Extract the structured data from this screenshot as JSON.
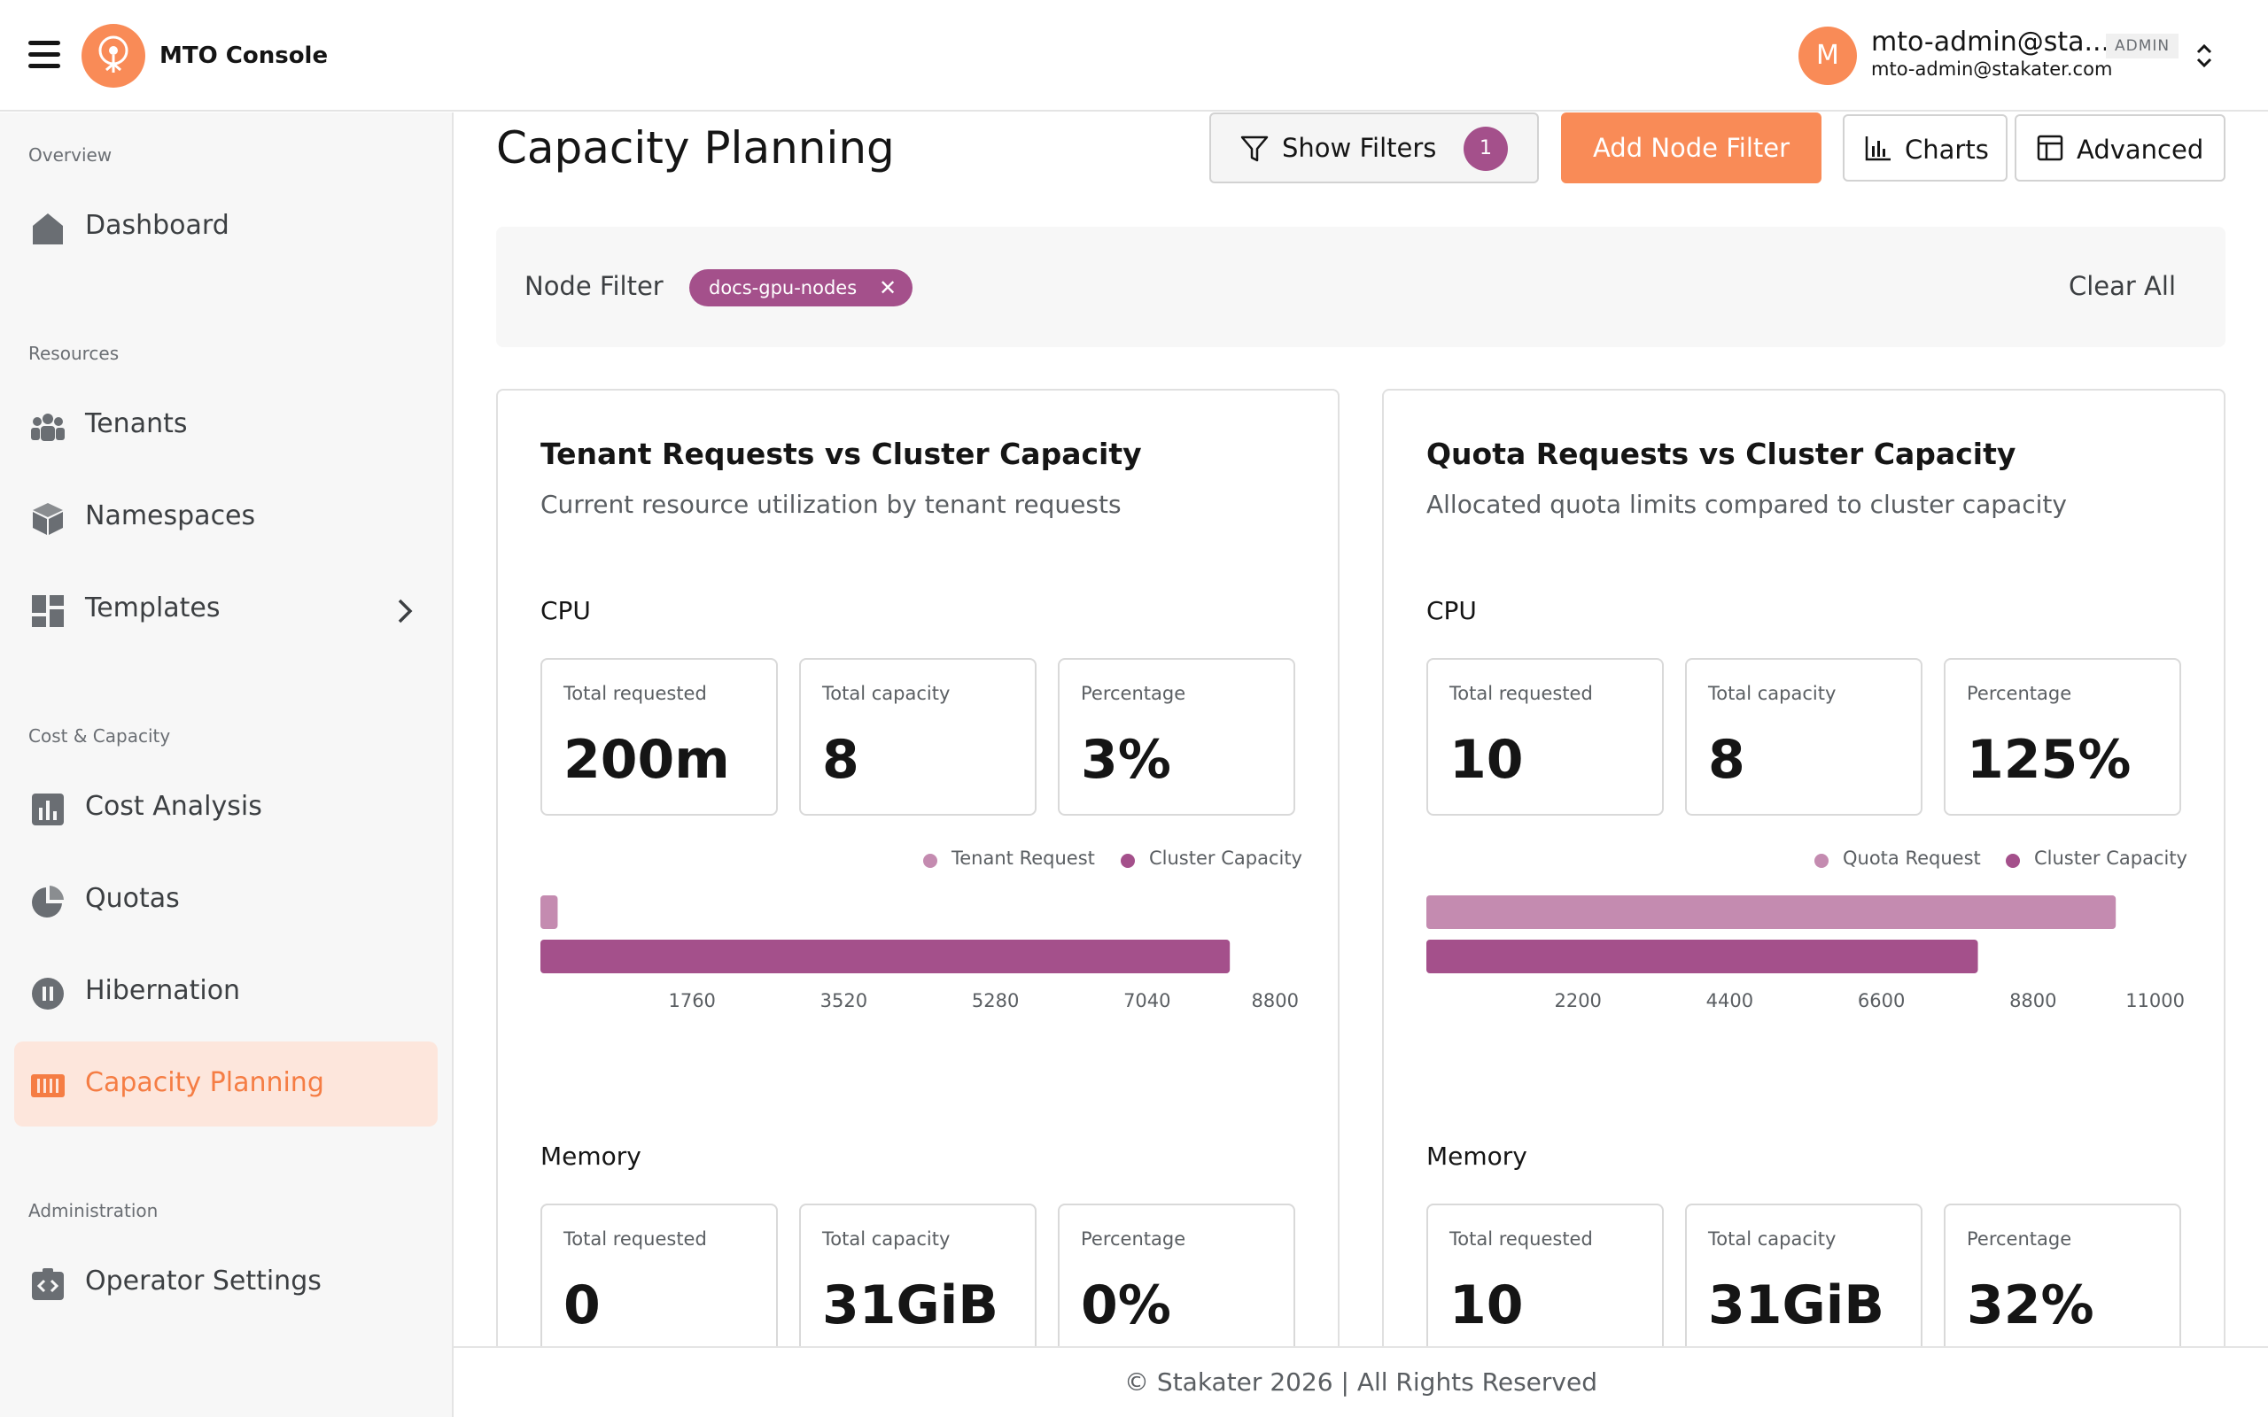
{
  "header": {
    "app_title": "MTO Console",
    "user_initial": "M",
    "user_name": "mto-admin@sta...",
    "user_role": "ADMIN",
    "user_email": "mto-admin@stakater.com"
  },
  "sidebar": {
    "sections": {
      "overview": "Overview",
      "resources": "Resources",
      "cost_capacity": "Cost & Capacity",
      "administration": "Administration"
    },
    "items": {
      "dashboard": "Dashboard",
      "tenants": "Tenants",
      "namespaces": "Namespaces",
      "templates": "Templates",
      "cost_analysis": "Cost Analysis",
      "quotas": "Quotas",
      "hibernation": "Hibernation",
      "capacity_planning": "Capacity Planning",
      "operator_settings": "Operator Settings"
    }
  },
  "page": {
    "title": "Capacity Planning",
    "show_filters": "Show Filters",
    "filter_count": "1",
    "add_node_filter": "Add Node Filter",
    "charts": "Charts",
    "advanced": "Advanced"
  },
  "filter_bar": {
    "label": "Node Filter",
    "chip": "docs-gpu-nodes",
    "clear_all": "Clear All"
  },
  "cards": {
    "tenant": {
      "title": "Tenant Requests vs Cluster Capacity",
      "subtitle": "Current resource utilization by tenant requests",
      "cpu": {
        "label": "CPU",
        "stats": [
          {
            "label": "Total requested",
            "value": "200m"
          },
          {
            "label": "Total capacity",
            "value": "8"
          },
          {
            "label": "Percentage",
            "value": "3%"
          }
        ],
        "legend": [
          "Tenant Request",
          "Cluster Capacity"
        ]
      },
      "memory": {
        "label": "Memory",
        "stats": [
          {
            "label": "Total requested",
            "value": "0"
          },
          {
            "label": "Total capacity",
            "value": "31GiB"
          },
          {
            "label": "Percentage",
            "value": "0%"
          }
        ]
      }
    },
    "quota": {
      "title": "Quota Requests vs Cluster Capacity",
      "subtitle": "Allocated quota limits compared to cluster capacity",
      "cpu": {
        "label": "CPU",
        "stats": [
          {
            "label": "Total requested",
            "value": "10"
          },
          {
            "label": "Total capacity",
            "value": "8"
          },
          {
            "label": "Percentage",
            "value": "125%"
          }
        ],
        "legend": [
          "Quota Request",
          "Cluster Capacity"
        ]
      },
      "memory": {
        "label": "Memory",
        "stats": [
          {
            "label": "Total requested",
            "value": "10"
          },
          {
            "label": "Total capacity",
            "value": "31GiB"
          },
          {
            "label": "Percentage",
            "value": "32%"
          }
        ]
      }
    }
  },
  "chart_data": [
    {
      "type": "bar",
      "orientation": "horizontal",
      "series": [
        {
          "name": "Tenant Request",
          "values": [
            200
          ],
          "color": "#c48bb0"
        },
        {
          "name": "Cluster Capacity",
          "values": [
            8000
          ],
          "color": "#a4508b"
        }
      ],
      "xticks": [
        1760,
        3520,
        5280,
        7040,
        8800
      ],
      "xlim": [
        0,
        8800
      ]
    },
    {
      "type": "bar",
      "orientation": "horizontal",
      "series": [
        {
          "name": "Quota Request",
          "values": [
            10000
          ],
          "color": "#c48bb0"
        },
        {
          "name": "Cluster Capacity",
          "values": [
            8000
          ],
          "color": "#a4508b"
        }
      ],
      "xticks": [
        2200,
        4400,
        6600,
        8800,
        11000
      ],
      "xlim": [
        0,
        11000
      ]
    }
  ],
  "colors": {
    "accent": "#f98b57",
    "purple": "#a4508b",
    "purple_light": "#c48bb0"
  },
  "footer": {
    "text": "© Stakater 2026 | All Rights Reserved"
  }
}
